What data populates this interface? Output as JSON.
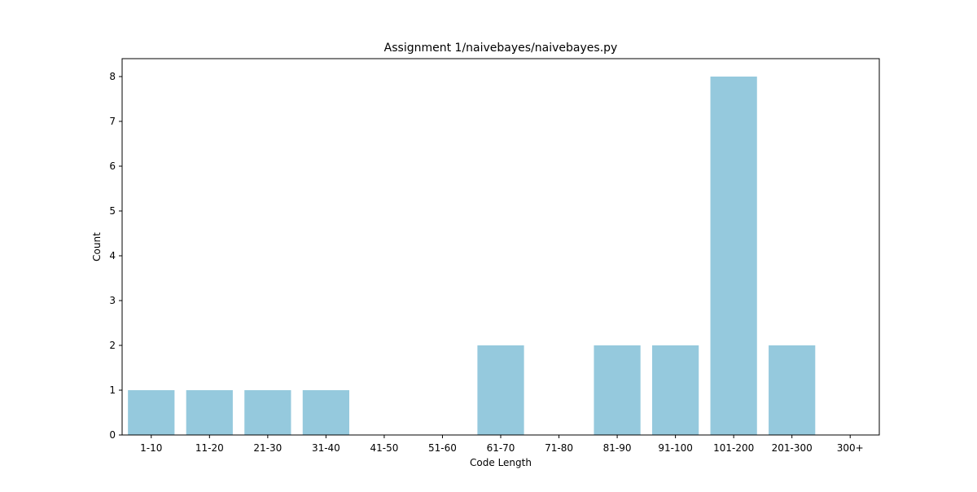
{
  "chart_data": {
    "type": "bar",
    "title": "Assignment 1/naivebayes/naivebayes.py",
    "xlabel": "Code Length",
    "ylabel": "Count",
    "categories": [
      "1-10",
      "11-20",
      "21-30",
      "31-40",
      "41-50",
      "51-60",
      "61-70",
      "71-80",
      "81-90",
      "91-100",
      "101-200",
      "201-300",
      "300+"
    ],
    "values": [
      1,
      1,
      1,
      1,
      0,
      0,
      2,
      0,
      2,
      2,
      8,
      2,
      0
    ],
    "ylim": [
      0,
      8.4
    ],
    "yticks": [
      0,
      1,
      2,
      3,
      4,
      5,
      6,
      7,
      8
    ],
    "bar_color": "#95c9dd",
    "grid": false,
    "legend": "none"
  }
}
